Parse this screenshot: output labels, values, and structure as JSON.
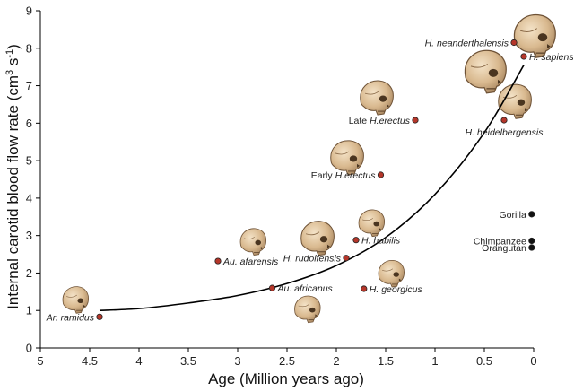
{
  "chart_data": {
    "type": "scatter",
    "xlabel": "Age  (Million years ago)",
    "ylabel_main": "Internal carotid blood flow rate",
    "ylabel_unit_base": "(cm",
    "ylabel_unit_sup1": "3",
    "ylabel_unit_mid": " s",
    "ylabel_unit_sup2": "-1",
    "ylabel_unit_end": ")",
    "xlim": [
      5,
      0
    ],
    "ylim": [
      0,
      9
    ],
    "x_reversed": true,
    "grid": false,
    "xticks": [
      {
        "value": 5,
        "label": "5"
      },
      {
        "value": 4.5,
        "label": "4.5"
      },
      {
        "value": 4,
        "label": "4"
      },
      {
        "value": 3.5,
        "label": "3.5"
      },
      {
        "value": 3,
        "label": "3"
      },
      {
        "value": 2.5,
        "label": "2.5"
      },
      {
        "value": 2,
        "label": "2"
      },
      {
        "value": 1.5,
        "label": "1.5"
      },
      {
        "value": 1,
        "label": "1"
      },
      {
        "value": 0.5,
        "label": "0.5"
      },
      {
        "value": 0,
        "label": "0"
      }
    ],
    "yticks": [
      {
        "value": 0,
        "label": "0"
      },
      {
        "value": 1,
        "label": "1"
      },
      {
        "value": 2,
        "label": "2"
      },
      {
        "value": 3,
        "label": "3"
      },
      {
        "value": 4,
        "label": "4"
      },
      {
        "value": 5,
        "label": "5"
      },
      {
        "value": 6,
        "label": "6"
      },
      {
        "value": 7,
        "label": "7"
      },
      {
        "value": 8,
        "label": "8"
      },
      {
        "value": 9,
        "label": "9"
      }
    ],
    "series": [
      {
        "group": "hominins",
        "color": "#b5362a",
        "points": [
          {
            "species": "Ar. ramidus",
            "italic_part": "Ar. ramidus",
            "prefix": "",
            "x": 4.4,
            "y": 0.83,
            "label_side": "left"
          },
          {
            "species": "Au. afarensis",
            "italic_part": "Au. afarensis",
            "prefix": "",
            "x": 3.2,
            "y": 2.32,
            "label_side": "right"
          },
          {
            "species": "Au. africanus",
            "italic_part": "Au. africanus",
            "prefix": "",
            "x": 2.65,
            "y": 1.6,
            "label_side": "right"
          },
          {
            "species": "H. rudolfensis",
            "italic_part": "H. rudolfensis",
            "prefix": "",
            "x": 1.9,
            "y": 2.4,
            "label_side": "left"
          },
          {
            "species": "H. habilis",
            "italic_part": "H. habilis",
            "prefix": "",
            "x": 1.8,
            "y": 2.88,
            "label_side": "right"
          },
          {
            "species": "H. georgicus",
            "italic_part": "H. georgicus",
            "prefix": "",
            "x": 1.72,
            "y": 1.58,
            "label_side": "right"
          },
          {
            "species": "Early H.erectus",
            "italic_part": "H.erectus",
            "prefix": "Early ",
            "x": 1.55,
            "y": 4.62,
            "label_side": "left"
          },
          {
            "species": "Late H.erectus",
            "italic_part": "H.erectus",
            "prefix": "Late ",
            "x": 1.2,
            "y": 6.08,
            "label_side": "left"
          },
          {
            "species": "H. heidelbergensis",
            "italic_part": "H. heidelbergensis",
            "prefix": "",
            "x": 0.3,
            "y": 6.08,
            "label_side": "below"
          },
          {
            "species": "H. neanderthalensis",
            "italic_part": "H. neanderthalensis",
            "prefix": "",
            "x": 0.2,
            "y": 8.15,
            "label_side": "left"
          },
          {
            "species": "H. sapiens",
            "italic_part": "H. sapiens",
            "prefix": "",
            "x": 0.1,
            "y": 7.78,
            "label_side": "right"
          }
        ]
      },
      {
        "group": "apes",
        "color": "#111111",
        "points": [
          {
            "species": "Gorilla",
            "italic_part": "",
            "prefix": "Gorilla",
            "x": 0.02,
            "y": 3.57,
            "label_side": "left"
          },
          {
            "species": "Chimpanzee",
            "italic_part": "",
            "prefix": "Chimpanzee",
            "x": 0.02,
            "y": 2.86,
            "label_side": "left"
          },
          {
            "species": "Orangutan",
            "italic_part": "",
            "prefix": "Orangutan",
            "x": 0.02,
            "y": 2.68,
            "label_side": "left"
          }
        ]
      }
    ],
    "trend_curve": {
      "type": "exponential-fit",
      "color": "#000000",
      "points": [
        {
          "x": 4.4,
          "y": 1.0
        },
        {
          "x": 4.0,
          "y": 1.05
        },
        {
          "x": 3.5,
          "y": 1.2
        },
        {
          "x": 3.0,
          "y": 1.4
        },
        {
          "x": 2.5,
          "y": 1.72
        },
        {
          "x": 2.0,
          "y": 2.2
        },
        {
          "x": 1.5,
          "y": 2.95
        },
        {
          "x": 1.0,
          "y": 4.1
        },
        {
          "x": 0.5,
          "y": 5.75
        },
        {
          "x": 0.1,
          "y": 7.55
        }
      ]
    },
    "skull_illustrations": [
      {
        "near": "Ar. ramidus",
        "x": 4.65,
        "y": 1.3,
        "size": "small"
      },
      {
        "near": "Au. afarensis",
        "x": 2.85,
        "y": 2.85,
        "size": "small"
      },
      {
        "near": "Au. africanus",
        "x": 2.3,
        "y": 1.05,
        "size": "small"
      },
      {
        "near": "H. rudolfensis",
        "x": 2.2,
        "y": 2.95,
        "size": "medium"
      },
      {
        "near": "H. habilis",
        "x": 1.65,
        "y": 3.35,
        "size": "small"
      },
      {
        "near": "H. georgicus",
        "x": 1.45,
        "y": 2.0,
        "size": "small"
      },
      {
        "near": "Early H.erectus",
        "x": 1.9,
        "y": 5.1,
        "size": "medium"
      },
      {
        "near": "Late H.erectus",
        "x": 1.6,
        "y": 6.7,
        "size": "medium"
      },
      {
        "near": "H. heidelbergensis",
        "x": 0.2,
        "y": 6.6,
        "size": "medium"
      },
      {
        "near": "H. neanderthalensis",
        "x": 0.5,
        "y": 7.4,
        "size": "large"
      },
      {
        "near": "H. sapiens",
        "x": 0.0,
        "y": 8.35,
        "size": "large"
      }
    ]
  }
}
